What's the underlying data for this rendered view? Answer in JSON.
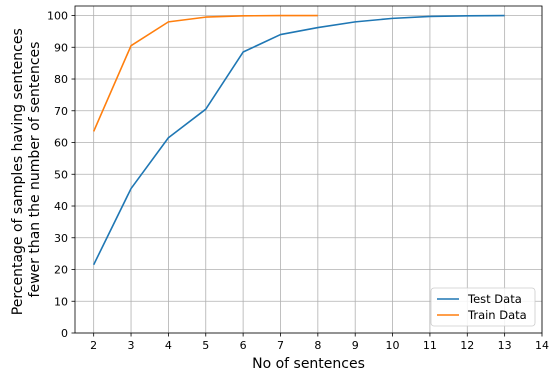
{
  "chart_data": {
    "type": "line",
    "xlabel": "No of sentences",
    "ylabel_lines": [
      "Percentage of samples having sentences",
      "fewer than the number of sentences"
    ],
    "xlim": [
      1.5,
      14
    ],
    "ylim": [
      0,
      103
    ],
    "xticks": [
      2,
      3,
      4,
      5,
      6,
      7,
      8,
      9,
      10,
      11,
      12,
      13,
      14
    ],
    "yticks": [
      0,
      10,
      20,
      30,
      40,
      50,
      60,
      70,
      80,
      90,
      100
    ],
    "grid": true,
    "legend_position": "bottom-right",
    "series": [
      {
        "name": "Test Data",
        "color": "#1f77b4",
        "x": [
          2,
          3,
          4,
          5,
          6,
          7,
          8,
          9,
          10,
          11,
          12,
          13
        ],
        "values": [
          21.5,
          45.5,
          61.5,
          70.5,
          88.5,
          94,
          96.2,
          98,
          99.1,
          99.7,
          99.9,
          100
        ]
      },
      {
        "name": "Train Data",
        "color": "#ff7f0e",
        "x": [
          2,
          3,
          4,
          5,
          6,
          7,
          8
        ],
        "values": [
          63.5,
          90.5,
          98,
          99.5,
          99.9,
          100,
          100
        ]
      }
    ]
  }
}
